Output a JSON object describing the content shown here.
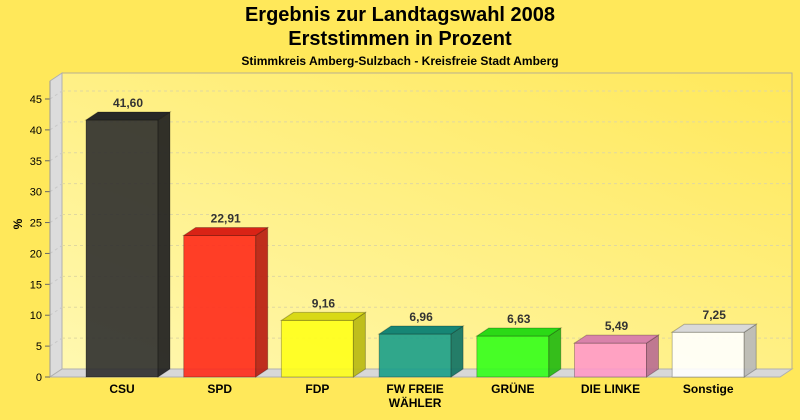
{
  "chart_data": {
    "type": "bar",
    "title": "Ergebnis zur Landtagswahl 2008",
    "subtitle": "Erststimmen in Prozent",
    "subtitle2": "Stimmkreis Amberg-Sulzbach - Kreisfreie Stadt Amberg",
    "ylabel": "%",
    "xlabel": "",
    "ylim": [
      0,
      45
    ],
    "yticks": [
      0,
      5,
      10,
      15,
      20,
      25,
      30,
      35,
      40,
      45
    ],
    "grid": true,
    "categories": [
      "CSU",
      "SPD",
      "FDP",
      "FW FREIE\nWÄHLER",
      "GRÜNE",
      "DIE LINKE",
      "Sonstige"
    ],
    "values": [
      41.6,
      22.91,
      9.16,
      6.96,
      6.63,
      5.49,
      7.25
    ],
    "labels": [
      "41,60",
      "22,91",
      "9,16",
      "6,96",
      "6,63",
      "5,49",
      "7,25"
    ],
    "colors": [
      "#2e2e2e",
      "#ff2a1a",
      "#ffff1a",
      "#1a9e8a",
      "#33ff1a",
      "#ff99c8",
      "#ffffff"
    ]
  }
}
